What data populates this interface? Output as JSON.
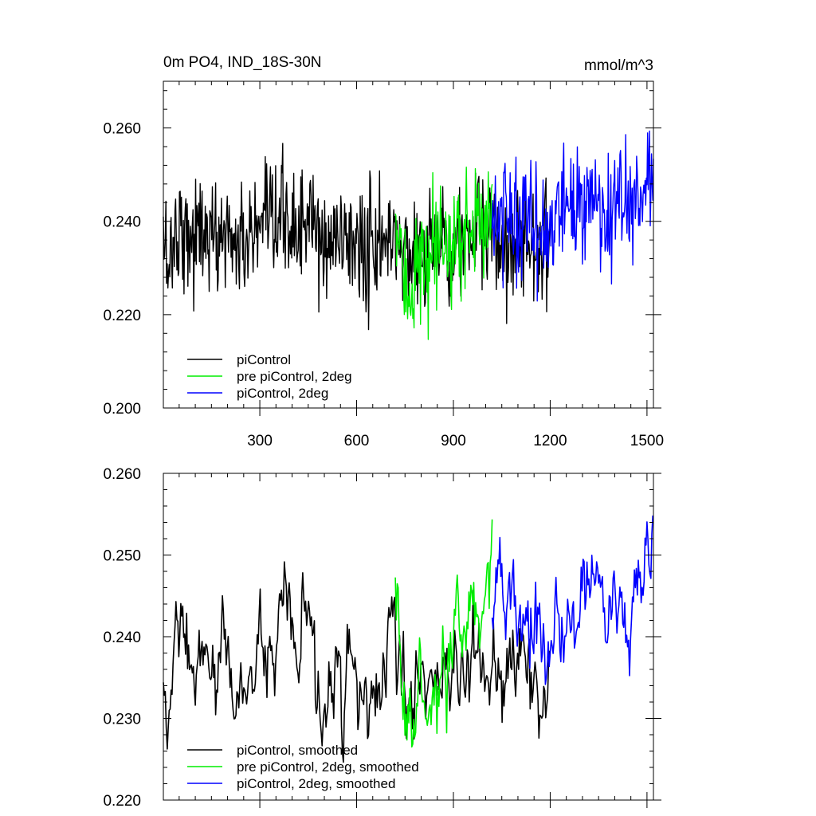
{
  "figure": {
    "panels": [
      {
        "title_left": "0m PO4, IND_18S-30N",
        "title_right": "mmol/m^3",
        "legend": [
          "piControl",
          "pre piControl, 2deg",
          "piControl, 2deg"
        ],
        "x_tick_labels": [
          "300",
          "600",
          "900",
          "1200",
          "1500"
        ],
        "y_tick_labels": [
          "0.200",
          "0.220",
          "0.240",
          "0.260"
        ]
      },
      {
        "title_left": "",
        "title_right": "",
        "legend": [
          "piControl, smoothed",
          "pre piControl, 2deg, smoothed",
          "piControl, 2deg, smoothed"
        ],
        "x_tick_labels": [],
        "y_tick_labels": [
          "0.220",
          "0.230",
          "0.240",
          "0.250",
          "0.260"
        ]
      }
    ]
  },
  "chart_data": [
    {
      "type": "line",
      "title": "0m PO4, IND_18S-30N",
      "title_right": "mmol/m^3",
      "xlabel": "",
      "ylabel": "",
      "xlim": [
        1,
        1520
      ],
      "ylim": [
        0.2,
        0.27
      ],
      "x_ticks": [
        300,
        600,
        900,
        1200,
        1500
      ],
      "y_ticks": [
        0.2,
        0.22,
        0.24,
        0.26
      ],
      "grid": false,
      "legend_position": "bottom-left",
      "colors": {
        "piControl": "#000000",
        "pre piControl, 2deg": "#00ee00",
        "piControl, 2deg": "#0000ff"
      },
      "series": [
        {
          "name": "piControl",
          "color": "#000000",
          "x": [
            1,
            20,
            40,
            60,
            80,
            100,
            120,
            140,
            160,
            180,
            200,
            220,
            240,
            260,
            280,
            300,
            320,
            340,
            360,
            380,
            400,
            420,
            440,
            460,
            480,
            500,
            520,
            540,
            560,
            580,
            600,
            620,
            640,
            660,
            680,
            700,
            720,
            740,
            760,
            780,
            800,
            820,
            840,
            860,
            880,
            900,
            920,
            940,
            960,
            980,
            1000,
            1020,
            1040,
            1060,
            1080,
            1100,
            1120,
            1140,
            1160,
            1180,
            1200
          ],
          "y": [
            0.235,
            0.232,
            0.238,
            0.239,
            0.237,
            0.236,
            0.239,
            0.237,
            0.235,
            0.237,
            0.238,
            0.236,
            0.234,
            0.236,
            0.237,
            0.236,
            0.238,
            0.237,
            0.239,
            0.241,
            0.239,
            0.237,
            0.24,
            0.24,
            0.236,
            0.234,
            0.235,
            0.236,
            0.237,
            0.237,
            0.235,
            0.233,
            0.234,
            0.235,
            0.233,
            0.237,
            0.237,
            0.234,
            0.233,
            0.234,
            0.235,
            0.233,
            0.235,
            0.236,
            0.237,
            0.235,
            0.235,
            0.236,
            0.237,
            0.238,
            0.236,
            0.236,
            0.235,
            0.234,
            0.236,
            0.237,
            0.236,
            0.235,
            0.236,
            0.234,
            0.236
          ]
        },
        {
          "name": "pre piControl, 2deg",
          "color": "#00ee00",
          "x": [
            720,
            740,
            760,
            780,
            800,
            820,
            840,
            860,
            880,
            900,
            920,
            940,
            960,
            980,
            1000,
            1020
          ],
          "y": [
            0.24,
            0.228,
            0.226,
            0.229,
            0.231,
            0.228,
            0.232,
            0.234,
            0.233,
            0.236,
            0.237,
            0.238,
            0.239,
            0.239,
            0.241,
            0.243
          ]
        },
        {
          "name": "piControl, 2deg",
          "color": "#0000ff",
          "x": [
            1020,
            1040,
            1060,
            1080,
            1100,
            1120,
            1140,
            1160,
            1180,
            1200,
            1220,
            1240,
            1260,
            1280,
            1300,
            1320,
            1340,
            1360,
            1380,
            1400,
            1420,
            1440,
            1460,
            1480,
            1500,
            1520
          ],
          "y": [
            0.243,
            0.245,
            0.244,
            0.242,
            0.241,
            0.243,
            0.241,
            0.239,
            0.237,
            0.238,
            0.242,
            0.24,
            0.241,
            0.243,
            0.242,
            0.244,
            0.245,
            0.242,
            0.24,
            0.242,
            0.244,
            0.241,
            0.245,
            0.243,
            0.247,
            0.248
          ]
        }
      ]
    },
    {
      "type": "line",
      "title": "",
      "xlabel": "",
      "ylabel": "",
      "xlim": [
        1,
        1520
      ],
      "ylim": [
        0.22,
        0.26
      ],
      "x_ticks": [
        300,
        600,
        900,
        1200,
        1500
      ],
      "y_ticks": [
        0.22,
        0.23,
        0.24,
        0.25,
        0.26
      ],
      "grid": false,
      "legend_position": "bottom-left",
      "colors": {
        "piControl, smoothed": "#000000",
        "pre piControl, 2deg, smoothed": "#00ee00",
        "piControl, 2deg, smoothed": "#0000ff"
      },
      "series": [
        {
          "name": "piControl, smoothed",
          "color": "#000000",
          "x": [
            1,
            20,
            40,
            60,
            80,
            100,
            120,
            140,
            160,
            180,
            200,
            220,
            240,
            260,
            280,
            300,
            320,
            340,
            360,
            380,
            400,
            420,
            440,
            460,
            480,
            500,
            520,
            540,
            560,
            580,
            600,
            620,
            640,
            660,
            680,
            700,
            720,
            740,
            760,
            780,
            800,
            820,
            840,
            860,
            880,
            900,
            920,
            940,
            960,
            980,
            1000,
            1020,
            1040,
            1060,
            1080,
            1100,
            1120,
            1140,
            1160,
            1180,
            1200
          ],
          "y": [
            0.234,
            0.226,
            0.24,
            0.242,
            0.236,
            0.234,
            0.239,
            0.237,
            0.233,
            0.237,
            0.238,
            0.235,
            0.231,
            0.235,
            0.238,
            0.236,
            0.238,
            0.236,
            0.239,
            0.243,
            0.24,
            0.236,
            0.241,
            0.24,
            0.233,
            0.23,
            0.232,
            0.234,
            0.236,
            0.237,
            0.233,
            0.23,
            0.232,
            0.234,
            0.232,
            0.239,
            0.239,
            0.234,
            0.232,
            0.233,
            0.235,
            0.232,
            0.234,
            0.236,
            0.237,
            0.234,
            0.233,
            0.236,
            0.238,
            0.239,
            0.236,
            0.236,
            0.234,
            0.232,
            0.236,
            0.237,
            0.236,
            0.234,
            0.235,
            0.232,
            0.236
          ]
        },
        {
          "name": "pre piControl, 2deg, smoothed",
          "color": "#00ee00",
          "x": [
            720,
            740,
            760,
            780,
            800,
            820,
            840,
            860,
            880,
            900,
            920,
            940,
            960,
            980,
            1000,
            1020
          ],
          "y": [
            0.249,
            0.235,
            0.228,
            0.23,
            0.234,
            0.229,
            0.233,
            0.236,
            0.232,
            0.238,
            0.239,
            0.24,
            0.242,
            0.241,
            0.244,
            0.252
          ]
        },
        {
          "name": "piControl, 2deg, smoothed",
          "color": "#0000ff",
          "x": [
            1020,
            1040,
            1060,
            1080,
            1100,
            1120,
            1140,
            1160,
            1180,
            1200,
            1220,
            1240,
            1260,
            1280,
            1300,
            1320,
            1340,
            1360,
            1380,
            1400,
            1420,
            1440,
            1460,
            1480,
            1500,
            1520
          ],
          "y": [
            0.244,
            0.249,
            0.246,
            0.244,
            0.241,
            0.245,
            0.243,
            0.24,
            0.236,
            0.238,
            0.243,
            0.24,
            0.242,
            0.245,
            0.243,
            0.246,
            0.248,
            0.243,
            0.24,
            0.243,
            0.246,
            0.24,
            0.247,
            0.244,
            0.25,
            0.252
          ]
        }
      ]
    }
  ]
}
